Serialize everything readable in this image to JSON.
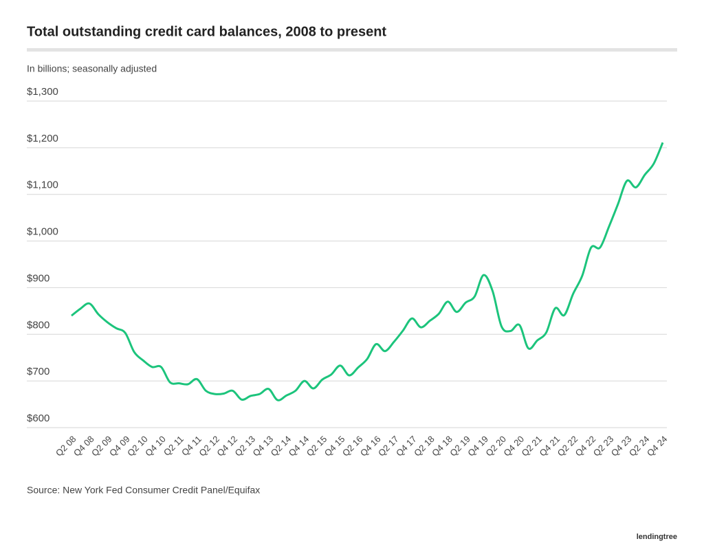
{
  "chart_data": {
    "type": "line",
    "title": "Total outstanding credit card balances, 2008 to present",
    "subtitle": "In billions; seasonally adjusted",
    "source": "Source: New York Fed Consumer Credit Panel/Equifax",
    "logo": "lendingtree",
    "categories": [
      "Q2 08",
      null,
      "Q4 08",
      null,
      "Q2 09",
      null,
      "Q4 09",
      null,
      "Q2 10",
      null,
      "Q4 10",
      null,
      "Q2 11",
      null,
      "Q4 11",
      null,
      "Q2 12",
      null,
      "Q4 12",
      null,
      "Q2 13",
      null,
      "Q4 13",
      null,
      "Q2 14",
      null,
      "Q4 14",
      null,
      "Q2 15",
      null,
      "Q4 15",
      null,
      "Q2 16",
      null,
      "Q4 16",
      null,
      "Q2 17",
      null,
      "Q4 17",
      null,
      "Q2 18",
      null,
      "Q4 18",
      null,
      "Q2 19",
      null,
      "Q4 19",
      null,
      "Q2 20",
      null,
      "Q4 20",
      null,
      "Q2 21",
      null,
      "Q4 21",
      null,
      "Q2 22",
      null,
      "Q4 22",
      null,
      "Q2 23",
      null,
      "Q4 23",
      null,
      "Q2 24",
      null,
      "Q4 24"
    ],
    "series": [
      {
        "name": "Credit card balances",
        "color": "#1cc47c",
        "values": [
          840,
          855,
          866,
          843,
          826,
          813,
          803,
          762,
          744,
          730,
          730,
          697,
          695,
          693,
          704,
          679,
          672,
          673,
          679,
          660,
          668,
          672,
          683,
          659,
          669,
          679,
          700,
          684,
          703,
          714,
          733,
          712,
          729,
          747,
          779,
          764,
          784,
          808,
          834,
          815,
          829,
          844,
          870,
          848,
          868,
          881,
          927,
          893,
          817,
          807,
          820,
          770,
          787,
          804,
          856,
          841,
          887,
          925,
          986,
          986,
          1031,
          1079,
          1129,
          1115,
          1142,
          1166,
          1211
        ]
      }
    ],
    "ylim": [
      600,
      1300
    ],
    "yticks": [
      {
        "value": 600,
        "label": "$600"
      },
      {
        "value": 700,
        "label": "$700"
      },
      {
        "value": 800,
        "label": "$800"
      },
      {
        "value": 900,
        "label": "$900"
      },
      {
        "value": 1000,
        "label": "$1,000"
      },
      {
        "value": 1100,
        "label": "$1,100"
      },
      {
        "value": 1200,
        "label": "$1,200"
      },
      {
        "value": 1300,
        "label": "$1,300"
      }
    ],
    "grid": true
  }
}
